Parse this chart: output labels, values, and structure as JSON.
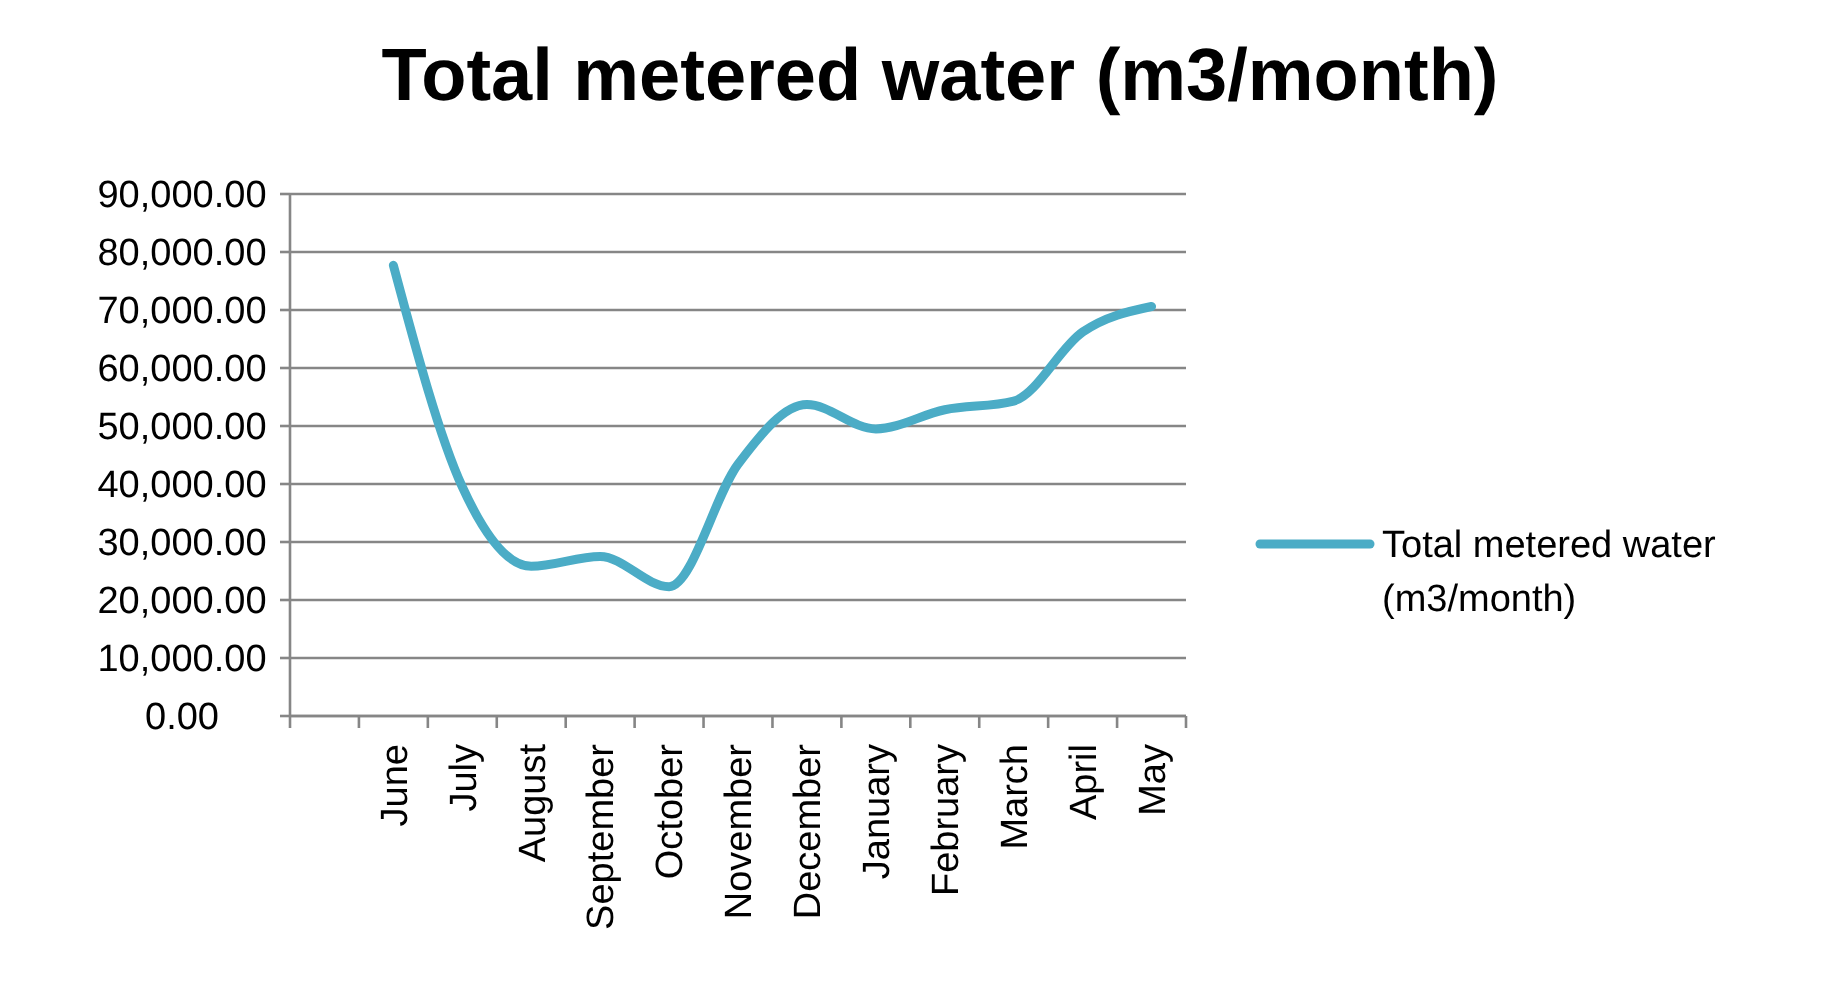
{
  "chart_data": {
    "type": "line",
    "title": "Total metered water (m3/month)",
    "categories": [
      null,
      "June",
      "July",
      "August",
      "September",
      "October",
      "November",
      "December",
      "January",
      "February",
      "March",
      "April",
      "May"
    ],
    "series": [
      {
        "name": "Total metered water (m3/month)",
        "color": "#4bacc6",
        "values": [
          null,
          77700,
          39500,
          25800,
          27500,
          22300,
          43400,
          53700,
          49500,
          52800,
          54300,
          66200,
          70600
        ]
      }
    ],
    "ylim": [
      0,
      90000
    ],
    "yticks": [
      {
        "value": 0,
        "label": "0.00"
      },
      {
        "value": 10000,
        "label": "10,000.00"
      },
      {
        "value": 20000,
        "label": "20,000.00"
      },
      {
        "value": 30000,
        "label": "30,000.00"
      },
      {
        "value": 40000,
        "label": "40,000.00"
      },
      {
        "value": 50000,
        "label": "50,000.00"
      },
      {
        "value": 60000,
        "label": "60,000.00"
      },
      {
        "value": 70000,
        "label": "70,000.00"
      },
      {
        "value": 80000,
        "label": "80,000.00"
      },
      {
        "value": 90000,
        "label": "90,000.00"
      }
    ],
    "grid": "y",
    "legend": "right",
    "marker": "none",
    "line_style": "solid"
  }
}
